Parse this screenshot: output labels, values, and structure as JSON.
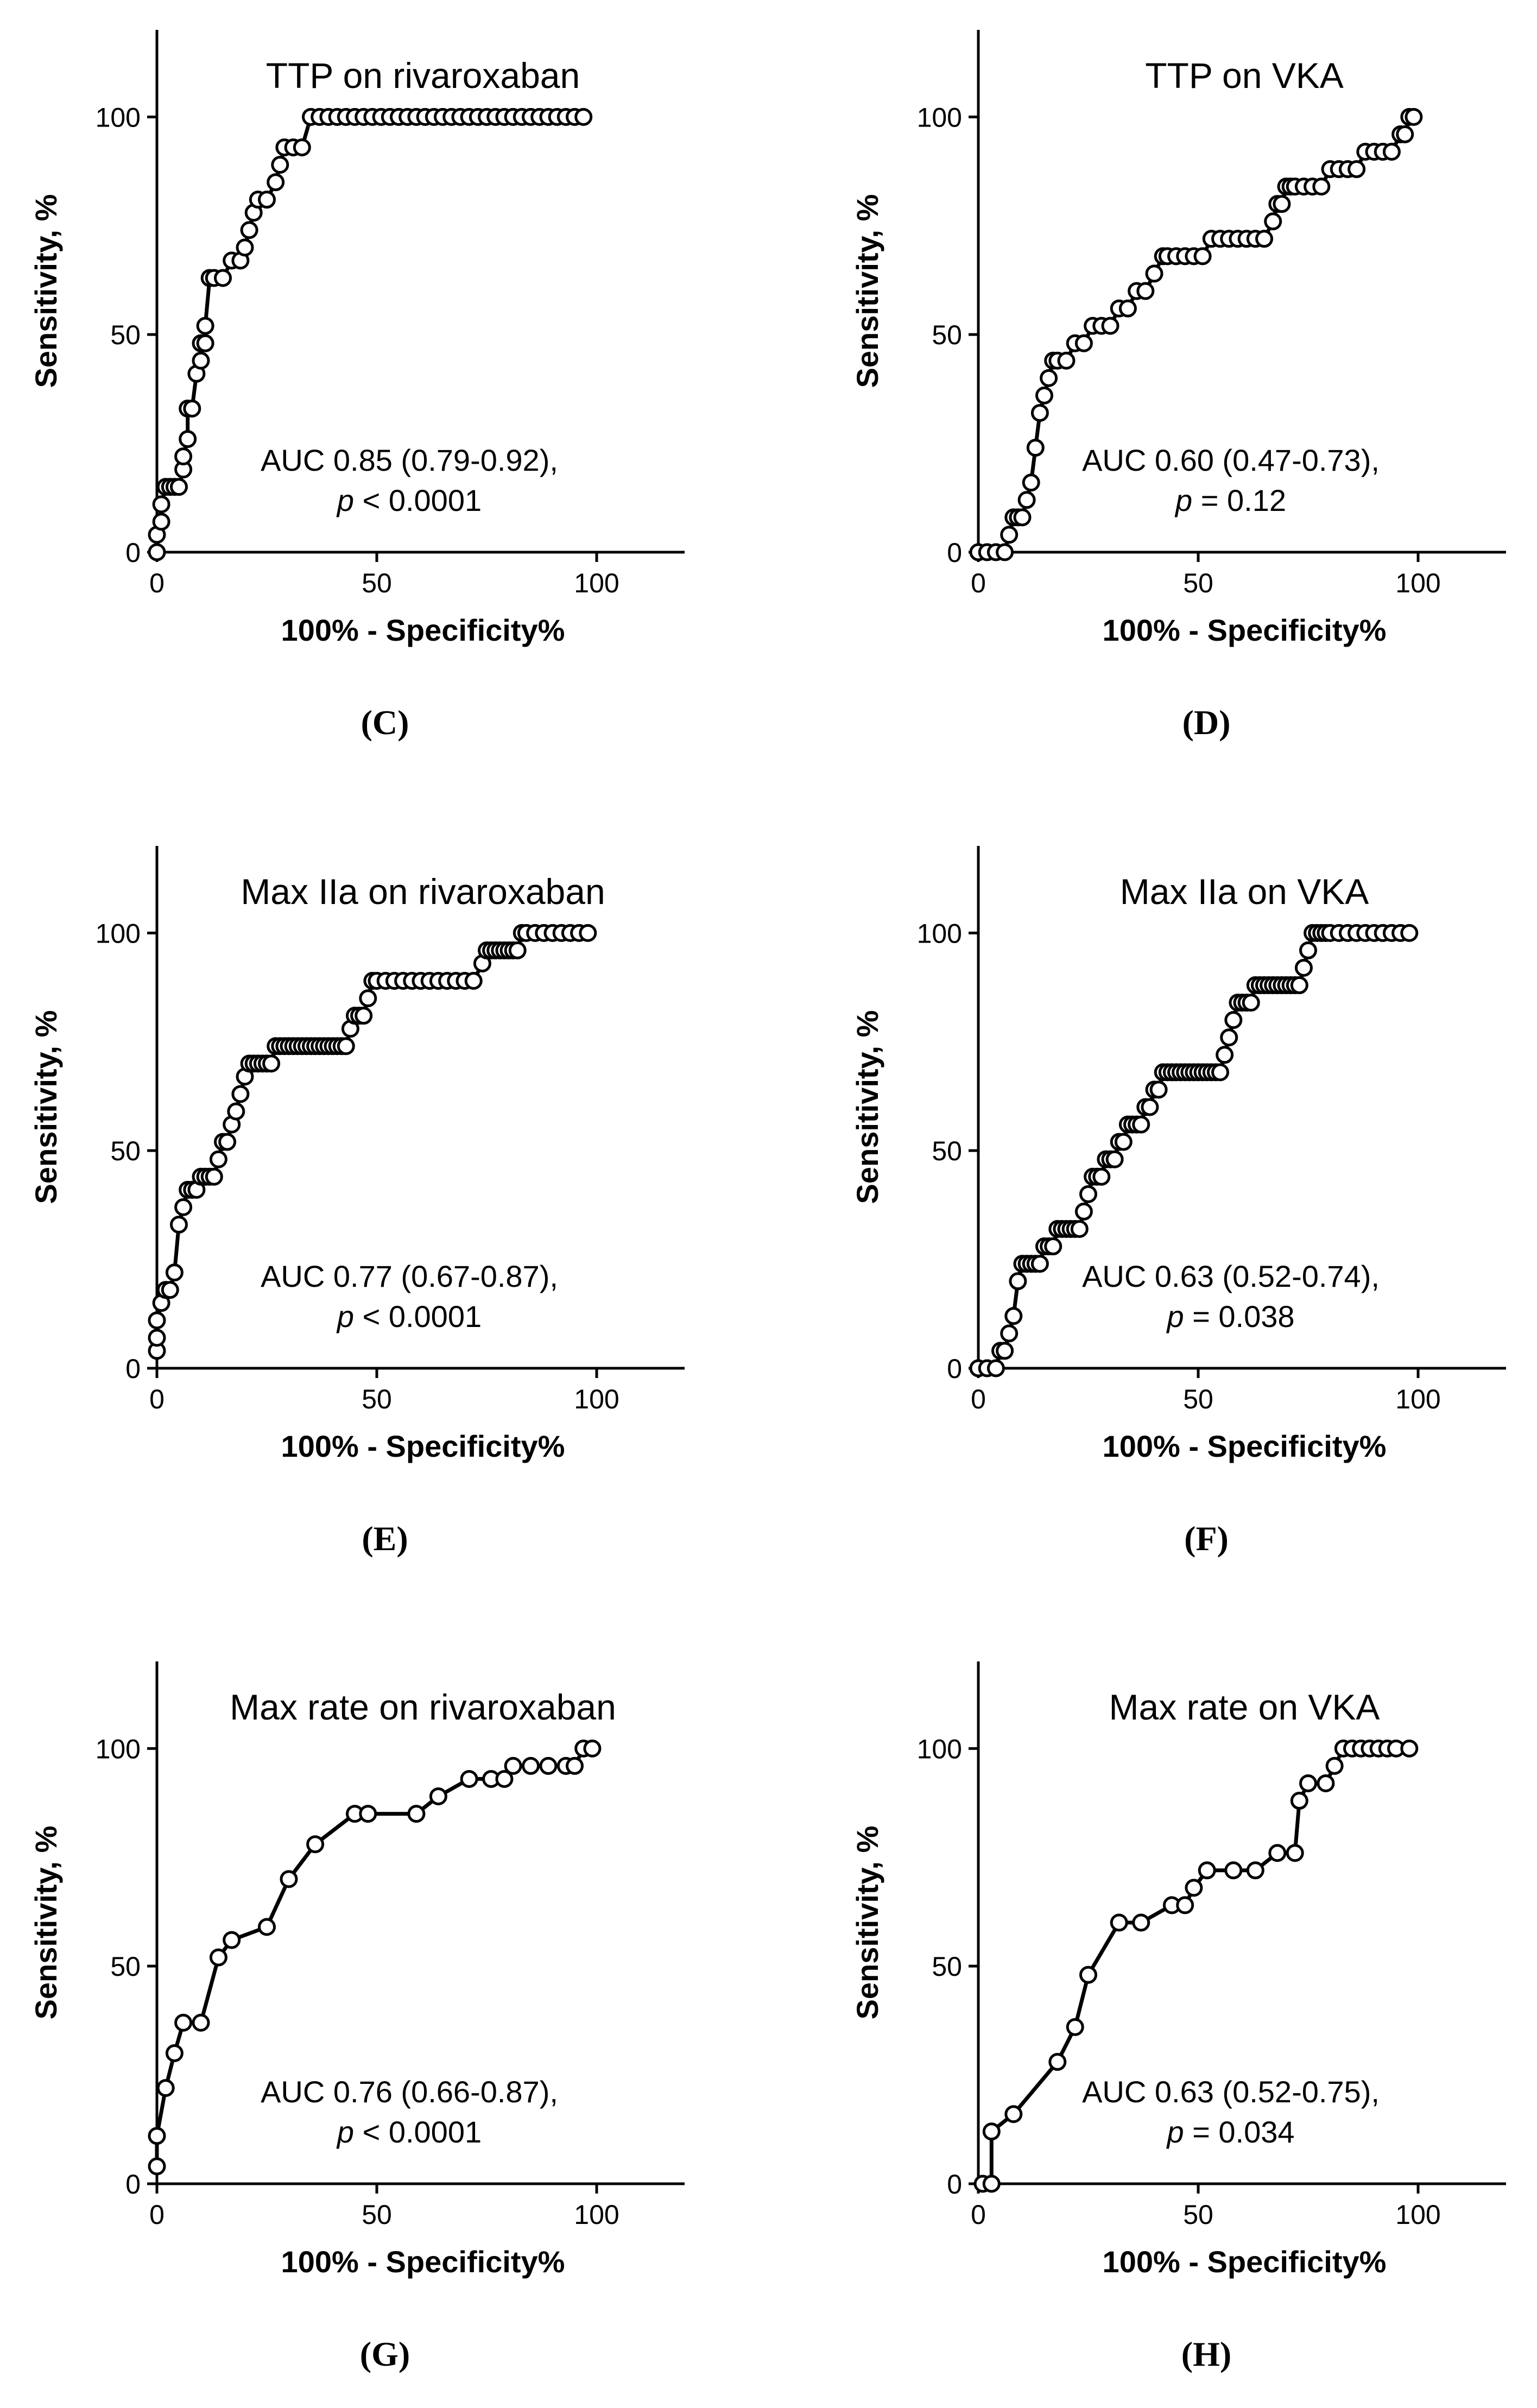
{
  "figure": {
    "colors": {
      "line": "#000000",
      "marker_fill": "#ffffff",
      "text": "#000000"
    }
  },
  "chart_data": [
    {
      "type": "line",
      "panel": "(C)",
      "title": "TTP on rivaroxaban",
      "xlabel": "100% - Specificity%",
      "ylabel": "Sensitivity, %",
      "xlim": [
        0,
        120
      ],
      "ylim": [
        0,
        120
      ],
      "xticks": [
        0,
        50,
        100
      ],
      "yticks": [
        0,
        50,
        100
      ],
      "grid": false,
      "legend": "none",
      "auc_text": "AUC 0.85 (0.79-0.92),",
      "p_symbol": "p",
      "p_text": " < 0.0001",
      "series": [
        {
          "name": "ROC",
          "x": [
            0,
            0,
            1,
            1,
            2,
            3,
            4,
            5,
            6,
            6,
            7,
            7,
            8,
            9,
            10,
            10,
            11,
            11,
            12,
            13,
            15,
            17,
            19,
            20,
            21,
            22,
            23,
            25,
            27,
            28,
            29,
            31,
            33,
            35,
            37,
            39,
            41,
            43,
            45,
            47,
            49,
            51,
            53,
            55,
            57,
            59,
            61,
            63,
            65,
            67,
            69,
            71,
            73,
            75,
            77,
            79,
            81,
            83,
            85,
            87,
            89,
            91,
            93,
            95,
            97
          ],
          "y": [
            0,
            4,
            7,
            11,
            15,
            15,
            15,
            15,
            19,
            22,
            26,
            33,
            33,
            41,
            44,
            48,
            48,
            52,
            63,
            63,
            63,
            67,
            67,
            70,
            74,
            78,
            81,
            81,
            85,
            89,
            93,
            93,
            93,
            100,
            100,
            100,
            100,
            100,
            100,
            100,
            100,
            100,
            100,
            100,
            100,
            100,
            100,
            100,
            100,
            100,
            100,
            100,
            100,
            100,
            100,
            100,
            100,
            100,
            100,
            100,
            100,
            100,
            100,
            100,
            100
          ]
        }
      ]
    },
    {
      "type": "line",
      "panel": "(D)",
      "title": "TTP on VKA",
      "xlabel": "100% - Specificity%",
      "ylabel": "Sensitivity, %",
      "xlim": [
        0,
        120
      ],
      "ylim": [
        0,
        120
      ],
      "xticks": [
        0,
        50,
        100
      ],
      "yticks": [
        0,
        50,
        100
      ],
      "grid": false,
      "legend": "none",
      "auc_text": "AUC 0.60 (0.47-0.73),",
      "p_symbol": "p",
      "p_text": " = 0.12",
      "series": [
        {
          "name": "ROC",
          "x": [
            0,
            2,
            4,
            6,
            7,
            8,
            9,
            10,
            11,
            12,
            13,
            14,
            15,
            16,
            17,
            18,
            20,
            22,
            24,
            26,
            28,
            30,
            32,
            34,
            36,
            38,
            40,
            42,
            43,
            45,
            47,
            49,
            51,
            53,
            55,
            57,
            59,
            61,
            63,
            65,
            67,
            68,
            69,
            70,
            71,
            72,
            74,
            76,
            78,
            80,
            82,
            84,
            86,
            88,
            90,
            92,
            94,
            96,
            97,
            98,
            99
          ],
          "y": [
            0,
            0,
            0,
            0,
            4,
            8,
            8,
            8,
            12,
            16,
            24,
            32,
            36,
            40,
            44,
            44,
            44,
            48,
            48,
            52,
            52,
            52,
            56,
            56,
            60,
            60,
            64,
            68,
            68,
            68,
            68,
            68,
            68,
            72,
            72,
            72,
            72,
            72,
            72,
            72,
            76,
            80,
            80,
            84,
            84,
            84,
            84,
            84,
            84,
            88,
            88,
            88,
            88,
            92,
            92,
            92,
            92,
            96,
            96,
            100,
            100
          ]
        }
      ]
    },
    {
      "type": "line",
      "panel": "(E)",
      "title": "Max IIa on rivaroxaban",
      "xlabel": "100% - Specificity%",
      "ylabel": "Sensitivity, %",
      "xlim": [
        0,
        120
      ],
      "ylim": [
        0,
        120
      ],
      "xticks": [
        0,
        50,
        100
      ],
      "yticks": [
        0,
        50,
        100
      ],
      "grid": false,
      "legend": "none",
      "auc_text": "AUC 0.77 (0.67-0.87),",
      "p_symbol": "p",
      "p_text": " < 0.0001",
      "series": [
        {
          "name": "ROC",
          "x": [
            0,
            0,
            0,
            1,
            2,
            3,
            4,
            5,
            6,
            7,
            8,
            9,
            10,
            11,
            12,
            13,
            14,
            15,
            16,
            17,
            18,
            19,
            20,
            21,
            22,
            23,
            24,
            25,
            26,
            27,
            28,
            29,
            30,
            31,
            32,
            33,
            34,
            35,
            36,
            37,
            38,
            39,
            40,
            41,
            42,
            43,
            44,
            45,
            46,
            47,
            48,
            49,
            50,
            52,
            54,
            56,
            58,
            60,
            62,
            64,
            66,
            68,
            70,
            72,
            74,
            75,
            76,
            77,
            78,
            79,
            80,
            81,
            82,
            83,
            84,
            86,
            88,
            90,
            92,
            94,
            96,
            98
          ],
          "y": [
            4,
            7,
            11,
            15,
            18,
            18,
            22,
            33,
            37,
            41,
            41,
            41,
            44,
            44,
            44,
            44,
            48,
            52,
            52,
            56,
            59,
            63,
            67,
            70,
            70,
            70,
            70,
            70,
            70,
            74,
            74,
            74,
            74,
            74,
            74,
            74,
            74,
            74,
            74,
            74,
            74,
            74,
            74,
            74,
            74,
            74,
            78,
            81,
            81,
            81,
            85,
            89,
            89,
            89,
            89,
            89,
            89,
            89,
            89,
            89,
            89,
            89,
            89,
            89,
            93,
            96,
            96,
            96,
            96,
            96,
            96,
            96,
            96,
            100,
            100,
            100,
            100,
            100,
            100,
            100,
            100,
            100
          ]
        }
      ]
    },
    {
      "type": "line",
      "panel": "(F)",
      "title": "Max IIa on VKA",
      "xlabel": "100% - Specificity%",
      "ylabel": "Sensitivity, %",
      "xlim": [
        0,
        120
      ],
      "ylim": [
        0,
        120
      ],
      "xticks": [
        0,
        50,
        100
      ],
      "yticks": [
        0,
        50,
        100
      ],
      "grid": false,
      "legend": "none",
      "auc_text": "AUC 0.63 (0.52-0.74),",
      "p_symbol": "p",
      "p_text": " = 0.038",
      "series": [
        {
          "name": "ROC",
          "x": [
            0,
            2,
            4,
            5,
            6,
            7,
            8,
            9,
            10,
            11,
            12,
            13,
            14,
            15,
            16,
            17,
            18,
            19,
            20,
            21,
            22,
            23,
            24,
            25,
            26,
            27,
            28,
            29,
            30,
            31,
            32,
            33,
            34,
            35,
            36,
            37,
            38,
            39,
            40,
            41,
            42,
            43,
            44,
            45,
            46,
            47,
            48,
            49,
            50,
            51,
            52,
            53,
            54,
            55,
            56,
            57,
            58,
            59,
            60,
            61,
            62,
            63,
            64,
            65,
            66,
            67,
            68,
            69,
            70,
            71,
            72,
            73,
            74,
            75,
            76,
            77,
            78,
            79,
            80,
            82,
            84,
            86,
            88,
            90,
            92,
            94,
            96,
            98
          ],
          "y": [
            0,
            0,
            0,
            4,
            4,
            8,
            12,
            20,
            24,
            24,
            24,
            24,
            24,
            28,
            28,
            28,
            32,
            32,
            32,
            32,
            32,
            32,
            36,
            40,
            44,
            44,
            44,
            48,
            48,
            48,
            52,
            52,
            56,
            56,
            56,
            56,
            60,
            60,
            64,
            64,
            68,
            68,
            68,
            68,
            68,
            68,
            68,
            68,
            68,
            68,
            68,
            68,
            68,
            68,
            72,
            76,
            80,
            84,
            84,
            84,
            84,
            88,
            88,
            88,
            88,
            88,
            88,
            88,
            88,
            88,
            88,
            88,
            92,
            96,
            100,
            100,
            100,
            100,
            100,
            100,
            100,
            100,
            100,
            100,
            100,
            100,
            100,
            100
          ]
        }
      ]
    },
    {
      "type": "line",
      "panel": "(G)",
      "title": "Max rate on rivaroxaban",
      "xlabel": "100% - Specificity%",
      "ylabel": "Sensitivity, %",
      "xlim": [
        0,
        120
      ],
      "ylim": [
        0,
        120
      ],
      "xticks": [
        0,
        50,
        100
      ],
      "yticks": [
        0,
        50,
        100
      ],
      "grid": false,
      "legend": "none",
      "auc_text": "AUC 0.76 (0.66-0.87),",
      "p_symbol": "p",
      "p_text": " < 0.0001",
      "series": [
        {
          "name": "ROC",
          "x": [
            0,
            0,
            2,
            4,
            6,
            10,
            14,
            17,
            25,
            30,
            36,
            45,
            48,
            59,
            64,
            71,
            76,
            79,
            81,
            85,
            89,
            93,
            95,
            97,
            99
          ],
          "y": [
            4,
            11,
            22,
            30,
            37,
            37,
            52,
            56,
            59,
            70,
            78,
            85,
            85,
            85,
            89,
            93,
            93,
            93,
            96,
            96,
            96,
            96,
            96,
            100,
            100
          ]
        }
      ]
    },
    {
      "type": "line",
      "panel": "(H)",
      "title": "Max rate on VKA",
      "xlabel": "100% - Specificity%",
      "ylabel": "Sensitivity, %",
      "xlim": [
        0,
        120
      ],
      "ylim": [
        0,
        120
      ],
      "xticks": [
        0,
        50,
        100
      ],
      "yticks": [
        0,
        50,
        100
      ],
      "grid": false,
      "legend": "none",
      "auc_text": "AUC 0.63 (0.52-0.75),",
      "p_symbol": "p",
      "p_text": " = 0.034",
      "series": [
        {
          "name": "ROC",
          "x": [
            1,
            3,
            3,
            8,
            18,
            22,
            25,
            32,
            37,
            44,
            47,
            49,
            52,
            58,
            63,
            68,
            72,
            73,
            75,
            79,
            81,
            83,
            85,
            87,
            89,
            91,
            93,
            95,
            98
          ],
          "y": [
            0,
            0,
            12,
            16,
            28,
            36,
            48,
            60,
            60,
            64,
            64,
            68,
            72,
            72,
            72,
            76,
            76,
            88,
            92,
            92,
            96,
            100,
            100,
            100,
            100,
            100,
            100,
            100,
            100
          ]
        }
      ]
    }
  ]
}
